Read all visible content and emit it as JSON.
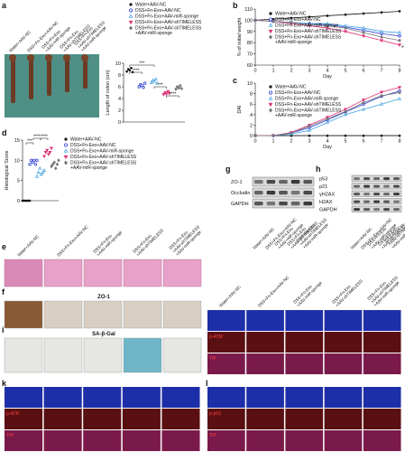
{
  "panel_labels": {
    "a": "a",
    "b": "b",
    "c": "c",
    "d": "d",
    "e": "e",
    "f": "f",
    "g": "g",
    "h": "h",
    "i": "i",
    "k": "k",
    "l": "l"
  },
  "groups": [
    "Water+AAV-NC",
    "DSS+Fn-Exo+AAV-NC",
    "DSS+Fn-Exo\n+AAV-miR-sponge",
    "DSS+Fn-Exo\n+AAV-shTIMELESS",
    "DSS+Fn-Exo\n+AAV-shTIMELESS\n+AAV-miR-sponge"
  ],
  "chart_data": [
    {
      "type": "dot",
      "y_label": "Length of colon (cm)",
      "ylim": [
        0,
        10
      ],
      "yticks": [
        0,
        2,
        4,
        6,
        8,
        10
      ],
      "series": [
        {
          "name": "Water+AAV-NC",
          "color": "#111111",
          "marker": "circle",
          "values": [
            8.6,
            9.0,
            8.8,
            9.2,
            8.5
          ]
        },
        {
          "name": "DSS+Fn-Exo+AAV-NC",
          "color": "#2b3fd6",
          "marker": "circle-open",
          "values": [
            6.0,
            6.4,
            6.2,
            5.9,
            6.6
          ]
        },
        {
          "name": "DSS+Fn-Exo+AAV-miR-sponge",
          "color": "#3fa0e0",
          "marker": "triangle",
          "values": [
            6.7,
            7.1,
            6.9,
            7.3,
            6.6
          ]
        },
        {
          "name": "DSS+Fn-Exo+AAV-shTIMELESS",
          "color": "#e0307a",
          "marker": "triangle-down",
          "values": [
            4.7,
            5.0,
            4.8,
            5.2,
            4.9
          ]
        },
        {
          "name": "DSS+Fn-Exo+AAV-shTIMELESS\n+AAV-miR-sponge",
          "color": "#777777",
          "marker": "diamond",
          "values": [
            5.6,
            6.0,
            5.8,
            6.2,
            5.7
          ]
        }
      ],
      "annotations": [
        "***",
        "****",
        "***",
        "****"
      ]
    },
    {
      "type": "line",
      "x_label": "Day",
      "y_label": "% of initial weight",
      "x": [
        0,
        1,
        2,
        3,
        4,
        5,
        6,
        7,
        8
      ],
      "xlim": [
        0,
        8
      ],
      "xticks": [
        0,
        1,
        2,
        3,
        4,
        5,
        6,
        7,
        8
      ],
      "ylim": [
        60,
        110
      ],
      "yticks": [
        60,
        70,
        80,
        90,
        100,
        110
      ],
      "series": [
        {
          "name": "Water+AAV-NC",
          "color": "#111111",
          "marker": "circle",
          "values": [
            100,
            101,
            102,
            103,
            104,
            105,
            106,
            107,
            108
          ]
        },
        {
          "name": "DSS+Fn-Exo+AAV-NC",
          "color": "#2b3fd6",
          "marker": "circle-open",
          "values": [
            100,
            99,
            98,
            97,
            96,
            94,
            91,
            88,
            86
          ]
        },
        {
          "name": "DSS+Fn-Exo+AAV-miR-sponge",
          "color": "#3fa0e0",
          "marker": "triangle",
          "values": [
            100,
            99,
            98,
            97,
            97,
            95,
            93,
            90,
            89
          ]
        },
        {
          "name": "DSS+Fn-Exo+AAV-shTIMELESS",
          "color": "#e0307a",
          "marker": "triangle-down",
          "values": [
            100,
            99,
            97,
            95,
            93,
            90,
            86,
            82,
            78
          ]
        },
        {
          "name": "DSS+Fn-Exo+AAV-shTIMELESS\n+AAV-miR-sponge",
          "color": "#777777",
          "marker": "diamond",
          "values": [
            100,
            99,
            98,
            96,
            95,
            93,
            89,
            85,
            82
          ]
        }
      ],
      "annotations": [
        "*"
      ]
    },
    {
      "type": "line",
      "x_label": "Day",
      "y_label": "DAI",
      "x": [
        0,
        1,
        2,
        3,
        4,
        5,
        6,
        7,
        8
      ],
      "xlim": [
        0,
        8
      ],
      "xticks": [
        0,
        1,
        2,
        3,
        4,
        5,
        6,
        7,
        8
      ],
      "ylim": [
        0,
        10
      ],
      "yticks": [
        0,
        2,
        4,
        6,
        8,
        10
      ],
      "series": [
        {
          "name": "Water+AAV-NC",
          "color": "#111111",
          "marker": "circle",
          "values": [
            0,
            0,
            0,
            0,
            0,
            0,
            0,
            0,
            0
          ]
        },
        {
          "name": "DSS+Fn-Exo+AAV-NC",
          "color": "#2b3fd6",
          "marker": "circle-open",
          "values": [
            0,
            0,
            0.5,
            1.5,
            3,
            4.5,
            6,
            7.5,
            8.5
          ]
        },
        {
          "name": "DSS+Fn-Exo+AAV-miR-sponge",
          "color": "#3fa0e0",
          "marker": "triangle",
          "values": [
            0,
            0,
            0.3,
            1,
            2.5,
            4,
            5,
            6,
            7
          ]
        },
        {
          "name": "DSS+Fn-Exo+AAV-shTIMELESS",
          "color": "#e0307a",
          "marker": "triangle-down",
          "values": [
            0,
            0,
            0.6,
            2,
            3.5,
            5,
            6.8,
            8.3,
            9.2
          ]
        },
        {
          "name": "DSS+Fn-Exo+AAV-shTIMELESS\n+AAV-miR-sponge",
          "color": "#777777",
          "marker": "diamond",
          "values": [
            0,
            0,
            0.5,
            1.8,
            3.2,
            4.6,
            6.3,
            7.6,
            8.2
          ]
        }
      ]
    },
    {
      "type": "dot",
      "y_label": "Histological Score",
      "ylim": [
        0,
        15
      ],
      "yticks": [
        0,
        5,
        10,
        15
      ],
      "series": [
        {
          "name": "Water+AAV-NC",
          "color": "#111111",
          "marker": "circle",
          "values": [
            0,
            0,
            0,
            0,
            0,
            0
          ]
        },
        {
          "name": "DSS+Fn-Exo+AAV-NC",
          "color": "#2b3fd6",
          "marker": "circle-open",
          "values": [
            9,
            10,
            9.5,
            10,
            9,
            10
          ]
        },
        {
          "name": "DSS+Fn-Exo+AAV-miR-sponge",
          "color": "#3fa0e0",
          "marker": "triangle",
          "values": [
            6,
            7,
            8,
            6.5,
            7,
            7.5
          ]
        },
        {
          "name": "DSS+Fn-Exo+AAV-shTIMELESS",
          "color": "#e0307a",
          "marker": "triangle-down",
          "values": [
            11,
            12,
            12.5,
            11.5,
            12,
            13
          ]
        },
        {
          "name": "DSS+Fn-Exo+AAV-shTIMELESS\n+AAV-miR-sponge",
          "color": "#777777",
          "marker": "diamond",
          "values": [
            8.5,
            9,
            9.5,
            8,
            9,
            10
          ]
        }
      ],
      "annotations": [
        "***",
        "****",
        "****"
      ]
    }
  ],
  "blots": {
    "g": [
      "ZO-1",
      "Occludin",
      "GAPDH"
    ],
    "h": [
      "p53",
      "p21",
      "γH2AX",
      "H2AX",
      "GAPDH"
    ]
  },
  "stain_titles": {
    "f": "ZO-1",
    "i": "SA-β-Gal"
  },
  "if_rows": {
    "j": [
      "p-ATM",
      "TIP"
    ],
    "k": [
      "p-ATR",
      "TIP"
    ],
    "l": [
      "p-p53",
      "TIP"
    ]
  }
}
